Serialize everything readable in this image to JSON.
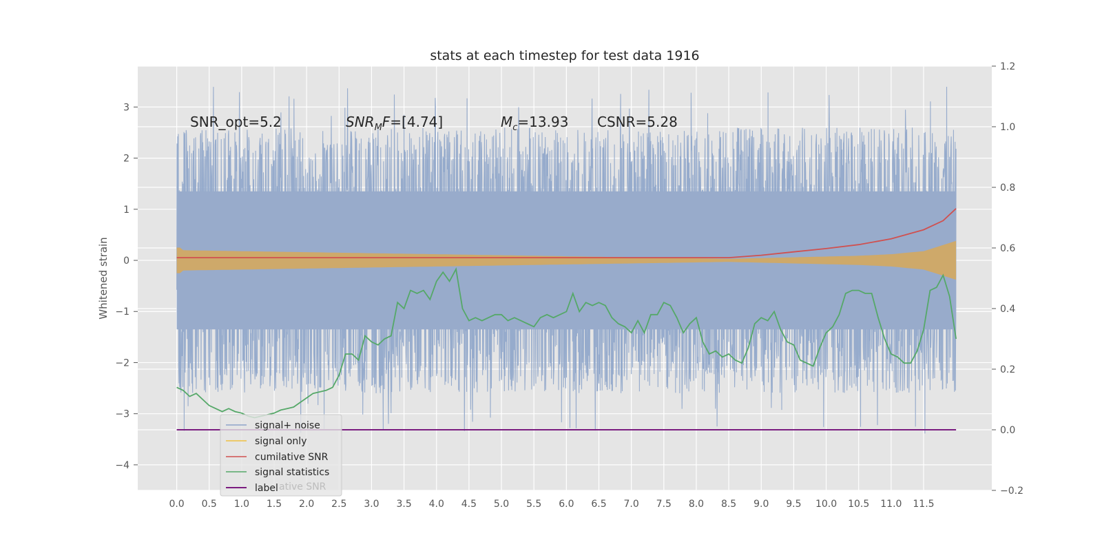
{
  "chart_data": {
    "type": "line",
    "title": "stats at each timestep for test data 1916",
    "ylabel": "Whitened strain",
    "xlim": [
      -0.6,
      12.55
    ],
    "ylim": [
      -4.5,
      3.8
    ],
    "y2lim": [
      -0.2,
      1.2
    ],
    "grid": true,
    "x_ticks": [
      "0.0",
      "0.5",
      "1.0",
      "1.5",
      "2.0",
      "2.5",
      "3.0",
      "3.5",
      "4.0",
      "4.5",
      "5.0",
      "5.5",
      "6.0",
      "6.5",
      "7.0",
      "7.5",
      "8.0",
      "8.5",
      "9.0",
      "9.5",
      "10.0",
      "10.5",
      "11.0",
      "11.5"
    ],
    "y_ticks": [
      "3",
      "2",
      "1",
      "0",
      "−1",
      "−2",
      "−3",
      "−4"
    ],
    "y2_ticks": [
      "1.2",
      "1.0",
      "0.8",
      "0.6",
      "0.4",
      "0.2",
      "0.0",
      "−0.2"
    ],
    "annotations": [
      {
        "text": "SNR_opt=5.2",
        "x": 0.2,
        "y": 2.65
      },
      {
        "text": "SNR_MF=[4.74]",
        "x": 2.6,
        "y": 2.65,
        "main": "SNR",
        "sub": "M",
        "rest": "F=[4.74]"
      },
      {
        "text": "M_c=13.93",
        "x": 5.0,
        "y": 2.65,
        "main": "M",
        "sub": "c",
        "rest": "=13.93"
      },
      {
        "text": "CSNR=5.28",
        "x": 6.5,
        "y": 2.65
      }
    ],
    "series": [
      {
        "name": "signal+ noise",
        "color": "#8da4c9",
        "axis": "left",
        "description": "whitened strain, roughly between -2.6 and 2.6 with peaks to 3.4 and -3.6",
        "x_range": [
          0.0,
          12.0
        ]
      },
      {
        "name": "signal only",
        "color": "#f0c040",
        "axis": "left",
        "envelope": {
          "x": [
            0.0,
            8.5,
            9.5,
            10.5,
            11.0,
            11.5,
            12.0
          ],
          "amp": [
            0.2,
            0.03,
            0.06,
            0.09,
            0.12,
            0.18,
            0.38
          ]
        }
      },
      {
        "name": "cumilative SNR",
        "color": "#d0504f",
        "axis": "right",
        "x": [
          0.0,
          8.5,
          9.0,
          9.5,
          10.0,
          10.5,
          11.0,
          11.5,
          11.8,
          12.0
        ],
        "y": [
          0.568,
          0.568,
          0.576,
          0.587,
          0.598,
          0.611,
          0.63,
          0.66,
          0.69,
          0.73
        ]
      },
      {
        "name": "signal statistics",
        "color": "#55a868",
        "axis": "right",
        "x": [
          0.0,
          0.1,
          0.2,
          0.3,
          0.4,
          0.5,
          0.6,
          0.7,
          0.8,
          0.9,
          1.0,
          1.1,
          1.2,
          1.3,
          1.4,
          1.5,
          1.6,
          1.7,
          1.8,
          1.9,
          2.0,
          2.1,
          2.2,
          2.3,
          2.4,
          2.5,
          2.6,
          2.7,
          2.8,
          2.9,
          3.0,
          3.1,
          3.2,
          3.3,
          3.4,
          3.5,
          3.6,
          3.7,
          3.8,
          3.9,
          4.0,
          4.1,
          4.2,
          4.3,
          4.4,
          4.5,
          4.6,
          4.7,
          4.8,
          4.9,
          5.0,
          5.1,
          5.2,
          5.3,
          5.4,
          5.5,
          5.6,
          5.7,
          5.8,
          5.9,
          6.0,
          6.1,
          6.2,
          6.3,
          6.4,
          6.5,
          6.6,
          6.7,
          6.8,
          6.9,
          7.0,
          7.1,
          7.2,
          7.3,
          7.4,
          7.5,
          7.6,
          7.7,
          7.8,
          7.9,
          8.0,
          8.1,
          8.2,
          8.3,
          8.4,
          8.5,
          8.6,
          8.7,
          8.8,
          8.9,
          9.0,
          9.1,
          9.2,
          9.3,
          9.4,
          9.5,
          9.6,
          9.7,
          9.8,
          9.9,
          10.0,
          10.1,
          10.2,
          10.3,
          10.4,
          10.5,
          10.6,
          10.7,
          10.8,
          10.9,
          11.0,
          11.1,
          11.2,
          11.3,
          11.4,
          11.5,
          11.6,
          11.7,
          11.8,
          11.9,
          12.0
        ],
        "y": [
          0.14,
          0.13,
          0.11,
          0.12,
          0.1,
          0.08,
          0.07,
          0.06,
          0.07,
          0.06,
          0.055,
          0.045,
          0.04,
          0.045,
          0.05,
          0.055,
          0.065,
          0.07,
          0.075,
          0.09,
          0.105,
          0.12,
          0.125,
          0.13,
          0.14,
          0.18,
          0.25,
          0.25,
          0.23,
          0.31,
          0.29,
          0.28,
          0.3,
          0.31,
          0.42,
          0.4,
          0.46,
          0.45,
          0.46,
          0.43,
          0.49,
          0.52,
          0.49,
          0.53,
          0.4,
          0.36,
          0.37,
          0.36,
          0.37,
          0.38,
          0.38,
          0.36,
          0.37,
          0.36,
          0.35,
          0.34,
          0.37,
          0.38,
          0.37,
          0.38,
          0.39,
          0.45,
          0.39,
          0.42,
          0.41,
          0.42,
          0.41,
          0.37,
          0.35,
          0.34,
          0.32,
          0.36,
          0.32,
          0.38,
          0.38,
          0.42,
          0.41,
          0.37,
          0.32,
          0.35,
          0.37,
          0.29,
          0.25,
          0.26,
          0.24,
          0.25,
          0.23,
          0.22,
          0.27,
          0.35,
          0.37,
          0.36,
          0.39,
          0.33,
          0.29,
          0.28,
          0.23,
          0.22,
          0.21,
          0.27,
          0.32,
          0.34,
          0.38,
          0.45,
          0.46,
          0.46,
          0.45,
          0.45,
          0.37,
          0.3,
          0.25,
          0.24,
          0.22,
          0.22,
          0.26,
          0.33,
          0.46,
          0.47,
          0.51,
          0.44,
          0.3
        ]
      },
      {
        "name": "label",
        "color": "#7a1c7f",
        "axis": "right",
        "x": [
          0.0,
          12.0
        ],
        "y": [
          0.0,
          0.0
        ]
      }
    ],
    "legend": {
      "placement": "lower-left",
      "ghost_text": "ative SNR"
    }
  }
}
